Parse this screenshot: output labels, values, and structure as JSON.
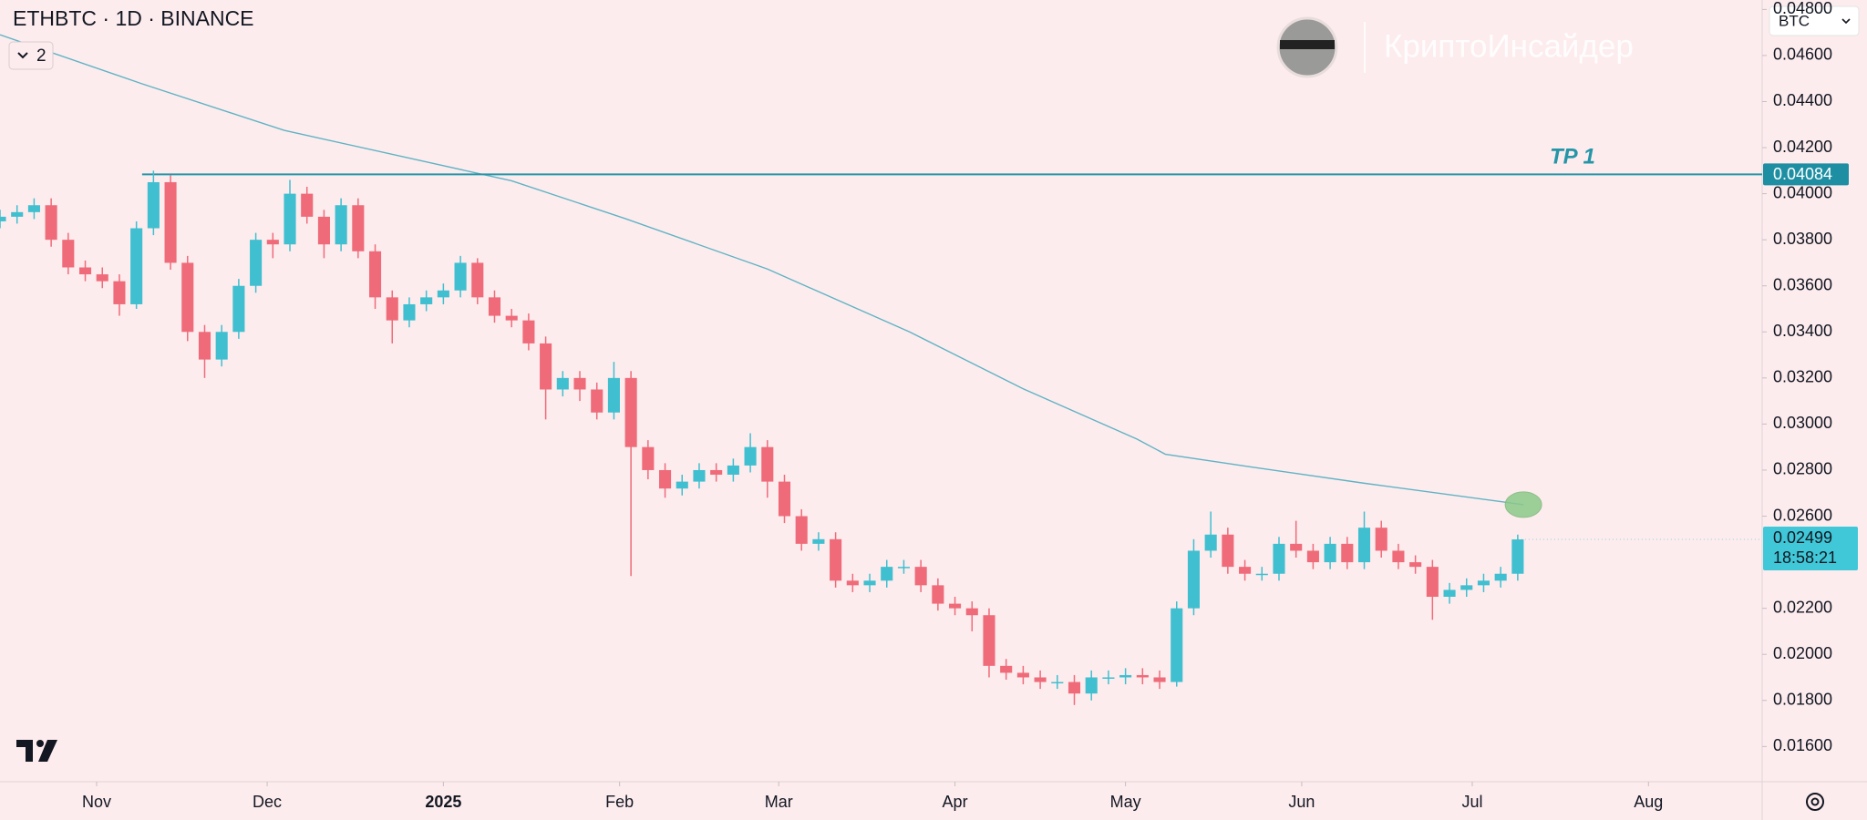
{
  "chart_data": {
    "type": "candlestick",
    "title": "ETHBTC · 1D · BINANCE",
    "indicator_count": 2,
    "currency": "BTC",
    "watermark": "КриптоИнсайдер",
    "up_color": "#3fbfcf",
    "down_color": "#ef6b79",
    "x": [
      0,
      3,
      6,
      9,
      12,
      15,
      18,
      21,
      24,
      27,
      30,
      33,
      36,
      39,
      42,
      45,
      48,
      51,
      54,
      57,
      60,
      63,
      66,
      69,
      72,
      75,
      78,
      81,
      84,
      87,
      90,
      93,
      96,
      99,
      102,
      105,
      108,
      111,
      114,
      117,
      120,
      123,
      126,
      129,
      132,
      135,
      138,
      141,
      144,
      147,
      150,
      153,
      156,
      159,
      162,
      165,
      168,
      171,
      174,
      177,
      180,
      183,
      186,
      189,
      192,
      195,
      198,
      201,
      204,
      207,
      210,
      213,
      216,
      219,
      222,
      225,
      228,
      231,
      234,
      237,
      240,
      243,
      246,
      249,
      252,
      255,
      258,
      261,
      264,
      267
    ],
    "open": [
      0.0388,
      0.039,
      0.0392,
      0.0395,
      0.038,
      0.0368,
      0.0365,
      0.0362,
      0.0352,
      0.0385,
      0.0405,
      0.037,
      0.034,
      0.0328,
      0.034,
      0.036,
      0.038,
      0.0378,
      0.04,
      0.039,
      0.0378,
      0.0395,
      0.0375,
      0.0355,
      0.0345,
      0.0352,
      0.0355,
      0.0358,
      0.037,
      0.0355,
      0.0347,
      0.0345,
      0.0335,
      0.0315,
      0.032,
      0.0315,
      0.0305,
      0.032,
      0.029,
      0.028,
      0.0272,
      0.0275,
      0.028,
      0.0278,
      0.0282,
      0.029,
      0.0275,
      0.026,
      0.0248,
      0.025,
      0.0232,
      0.023,
      0.0232,
      0.0238,
      0.0238,
      0.023,
      0.0222,
      0.022,
      0.0217,
      0.0195,
      0.0192,
      0.019,
      0.0188,
      0.0188,
      0.0183,
      0.019,
      0.019,
      0.0191,
      0.019,
      0.0188,
      0.022,
      0.0245,
      0.0252,
      0.0238,
      0.0235,
      0.0235,
      0.0248,
      0.0245,
      0.024,
      0.0248,
      0.024,
      0.0255,
      0.0245,
      0.024,
      0.0238,
      0.0225,
      0.0228,
      0.023,
      0.0232,
      0.0235
    ],
    "high": [
      0.0393,
      0.0395,
      0.0398,
      0.0398,
      0.0383,
      0.0371,
      0.0368,
      0.0365,
      0.0388,
      0.041,
      0.0408,
      0.0373,
      0.0343,
      0.0343,
      0.0363,
      0.0383,
      0.0383,
      0.0406,
      0.0403,
      0.0393,
      0.0398,
      0.0398,
      0.0378,
      0.0358,
      0.0355,
      0.0358,
      0.0361,
      0.0373,
      0.0372,
      0.0358,
      0.035,
      0.0348,
      0.0338,
      0.0323,
      0.0323,
      0.0318,
      0.0327,
      0.0323,
      0.0293,
      0.0283,
      0.0278,
      0.0283,
      0.0283,
      0.0285,
      0.0296,
      0.0293,
      0.0278,
      0.0263,
      0.0253,
      0.0253,
      0.0235,
      0.0235,
      0.0241,
      0.0241,
      0.0241,
      0.0233,
      0.0225,
      0.0223,
      0.022,
      0.0198,
      0.0195,
      0.0193,
      0.0191,
      0.0191,
      0.0193,
      0.0193,
      0.0194,
      0.0194,
      0.0193,
      0.0223,
      0.025,
      0.0262,
      0.0255,
      0.0241,
      0.0238,
      0.0251,
      0.0258,
      0.0248,
      0.0251,
      0.0251,
      0.0262,
      0.0258,
      0.0248,
      0.0243,
      0.0241,
      0.0231,
      0.0233,
      0.0235,
      0.0238,
      0.0252
    ],
    "low": [
      0.0385,
      0.0387,
      0.0389,
      0.0377,
      0.0365,
      0.0362,
      0.0359,
      0.0347,
      0.035,
      0.0382,
      0.0367,
      0.0336,
      0.032,
      0.0325,
      0.0337,
      0.0357,
      0.0372,
      0.0375,
      0.0387,
      0.0372,
      0.0375,
      0.0372,
      0.035,
      0.0335,
      0.0342,
      0.0349,
      0.0352,
      0.0355,
      0.0352,
      0.0344,
      0.0342,
      0.0332,
      0.0302,
      0.0312,
      0.031,
      0.0302,
      0.0302,
      0.0234,
      0.0276,
      0.0268,
      0.0269,
      0.0272,
      0.0275,
      0.0275,
      0.0279,
      0.0268,
      0.0257,
      0.0245,
      0.0245,
      0.0229,
      0.0227,
      0.0227,
      0.0229,
      0.0235,
      0.0227,
      0.0219,
      0.0217,
      0.021,
      0.019,
      0.0189,
      0.0187,
      0.0185,
      0.0185,
      0.0178,
      0.018,
      0.0187,
      0.0187,
      0.0187,
      0.0185,
      0.0186,
      0.0217,
      0.0242,
      0.0235,
      0.0232,
      0.0232,
      0.0232,
      0.0242,
      0.0237,
      0.0237,
      0.0237,
      0.0237,
      0.0242,
      0.0237,
      0.0235,
      0.0215,
      0.0222,
      0.0225,
      0.0227,
      0.0229,
      0.0232
    ],
    "close": [
      0.039,
      0.0392,
      0.0395,
      0.038,
      0.0368,
      0.0365,
      0.0362,
      0.0352,
      0.0385,
      0.0405,
      0.037,
      0.034,
      0.0328,
      0.034,
      0.036,
      0.038,
      0.0378,
      0.04,
      0.039,
      0.0378,
      0.0395,
      0.0375,
      0.0355,
      0.0345,
      0.0352,
      0.0355,
      0.0358,
      0.037,
      0.0355,
      0.0347,
      0.0345,
      0.0335,
      0.0315,
      0.032,
      0.0315,
      0.0305,
      0.032,
      0.029,
      0.028,
      0.0272,
      0.0275,
      0.028,
      0.0278,
      0.0282,
      0.029,
      0.0275,
      0.026,
      0.0248,
      0.025,
      0.0232,
      0.023,
      0.0232,
      0.0238,
      0.0238,
      0.023,
      0.0222,
      0.022,
      0.0217,
      0.0195,
      0.0192,
      0.019,
      0.0188,
      0.0188,
      0.0183,
      0.019,
      0.019,
      0.0191,
      0.019,
      0.0188,
      0.022,
      0.0245,
      0.0252,
      0.0238,
      0.0235,
      0.0235,
      0.0248,
      0.0245,
      0.024,
      0.0248,
      0.024,
      0.0255,
      0.0245,
      0.024,
      0.0238,
      0.0225,
      0.0228,
      0.023,
      0.0232,
      0.0235,
      0.02499
    ],
    "countdown": "18:58:21",
    "moving_average": {
      "color": "#5fb3c4",
      "x": [
        0,
        25,
        50,
        75,
        90,
        110,
        135,
        160,
        180,
        200,
        205,
        220,
        240,
        268
      ],
      "values": [
        0.0469,
        0.04477,
        0.04275,
        0.04138,
        0.04056,
        0.03892,
        0.03673,
        0.034,
        0.03153,
        0.02935,
        0.02869,
        0.02814,
        0.02743,
        0.0265
      ]
    },
    "levels": [
      {
        "label": "TP 1",
        "value": 0.04084,
        "x_start": 25,
        "color": "#2596a8"
      }
    ],
    "xlim": [
      0,
      310
    ],
    "xticks": [
      {
        "value": 17,
        "label": "Nov"
      },
      {
        "value": 47,
        "label": "Dec"
      },
      {
        "value": 78,
        "label": "2025"
      },
      {
        "value": 109,
        "label": "Feb"
      },
      {
        "value": 137,
        "label": "Mar"
      },
      {
        "value": 168,
        "label": "Apr"
      },
      {
        "value": 198,
        "label": "May"
      },
      {
        "value": 229,
        "label": "Jun"
      },
      {
        "value": 259,
        "label": "Jul"
      },
      {
        "value": 290,
        "label": "Aug"
      }
    ],
    "ylim": [
      0.01447,
      0.04841
    ],
    "yticks": [
      {
        "value": 0.016,
        "label": "0.01600"
      },
      {
        "value": 0.018,
        "label": "0.01800"
      },
      {
        "value": 0.02,
        "label": "0.02000"
      },
      {
        "value": 0.022,
        "label": "0.02200"
      },
      {
        "value": 0.026,
        "label": "0.02600"
      },
      {
        "value": 0.028,
        "label": "0.02800"
      },
      {
        "value": 0.03,
        "label": "0.03000"
      },
      {
        "value": 0.032,
        "label": "0.03200"
      },
      {
        "value": 0.034,
        "label": "0.03400"
      },
      {
        "value": 0.036,
        "label": "0.03600"
      },
      {
        "value": 0.038,
        "label": "0.03800"
      },
      {
        "value": 0.04,
        "label": "0.04000"
      },
      {
        "value": 0.042,
        "label": "0.04200"
      },
      {
        "value": 0.044,
        "label": "0.04400"
      },
      {
        "value": 0.046,
        "label": "0.04600"
      },
      {
        "value": 0.048,
        "label": "0.04800"
      }
    ],
    "log_scale": false,
    "grid": false
  }
}
